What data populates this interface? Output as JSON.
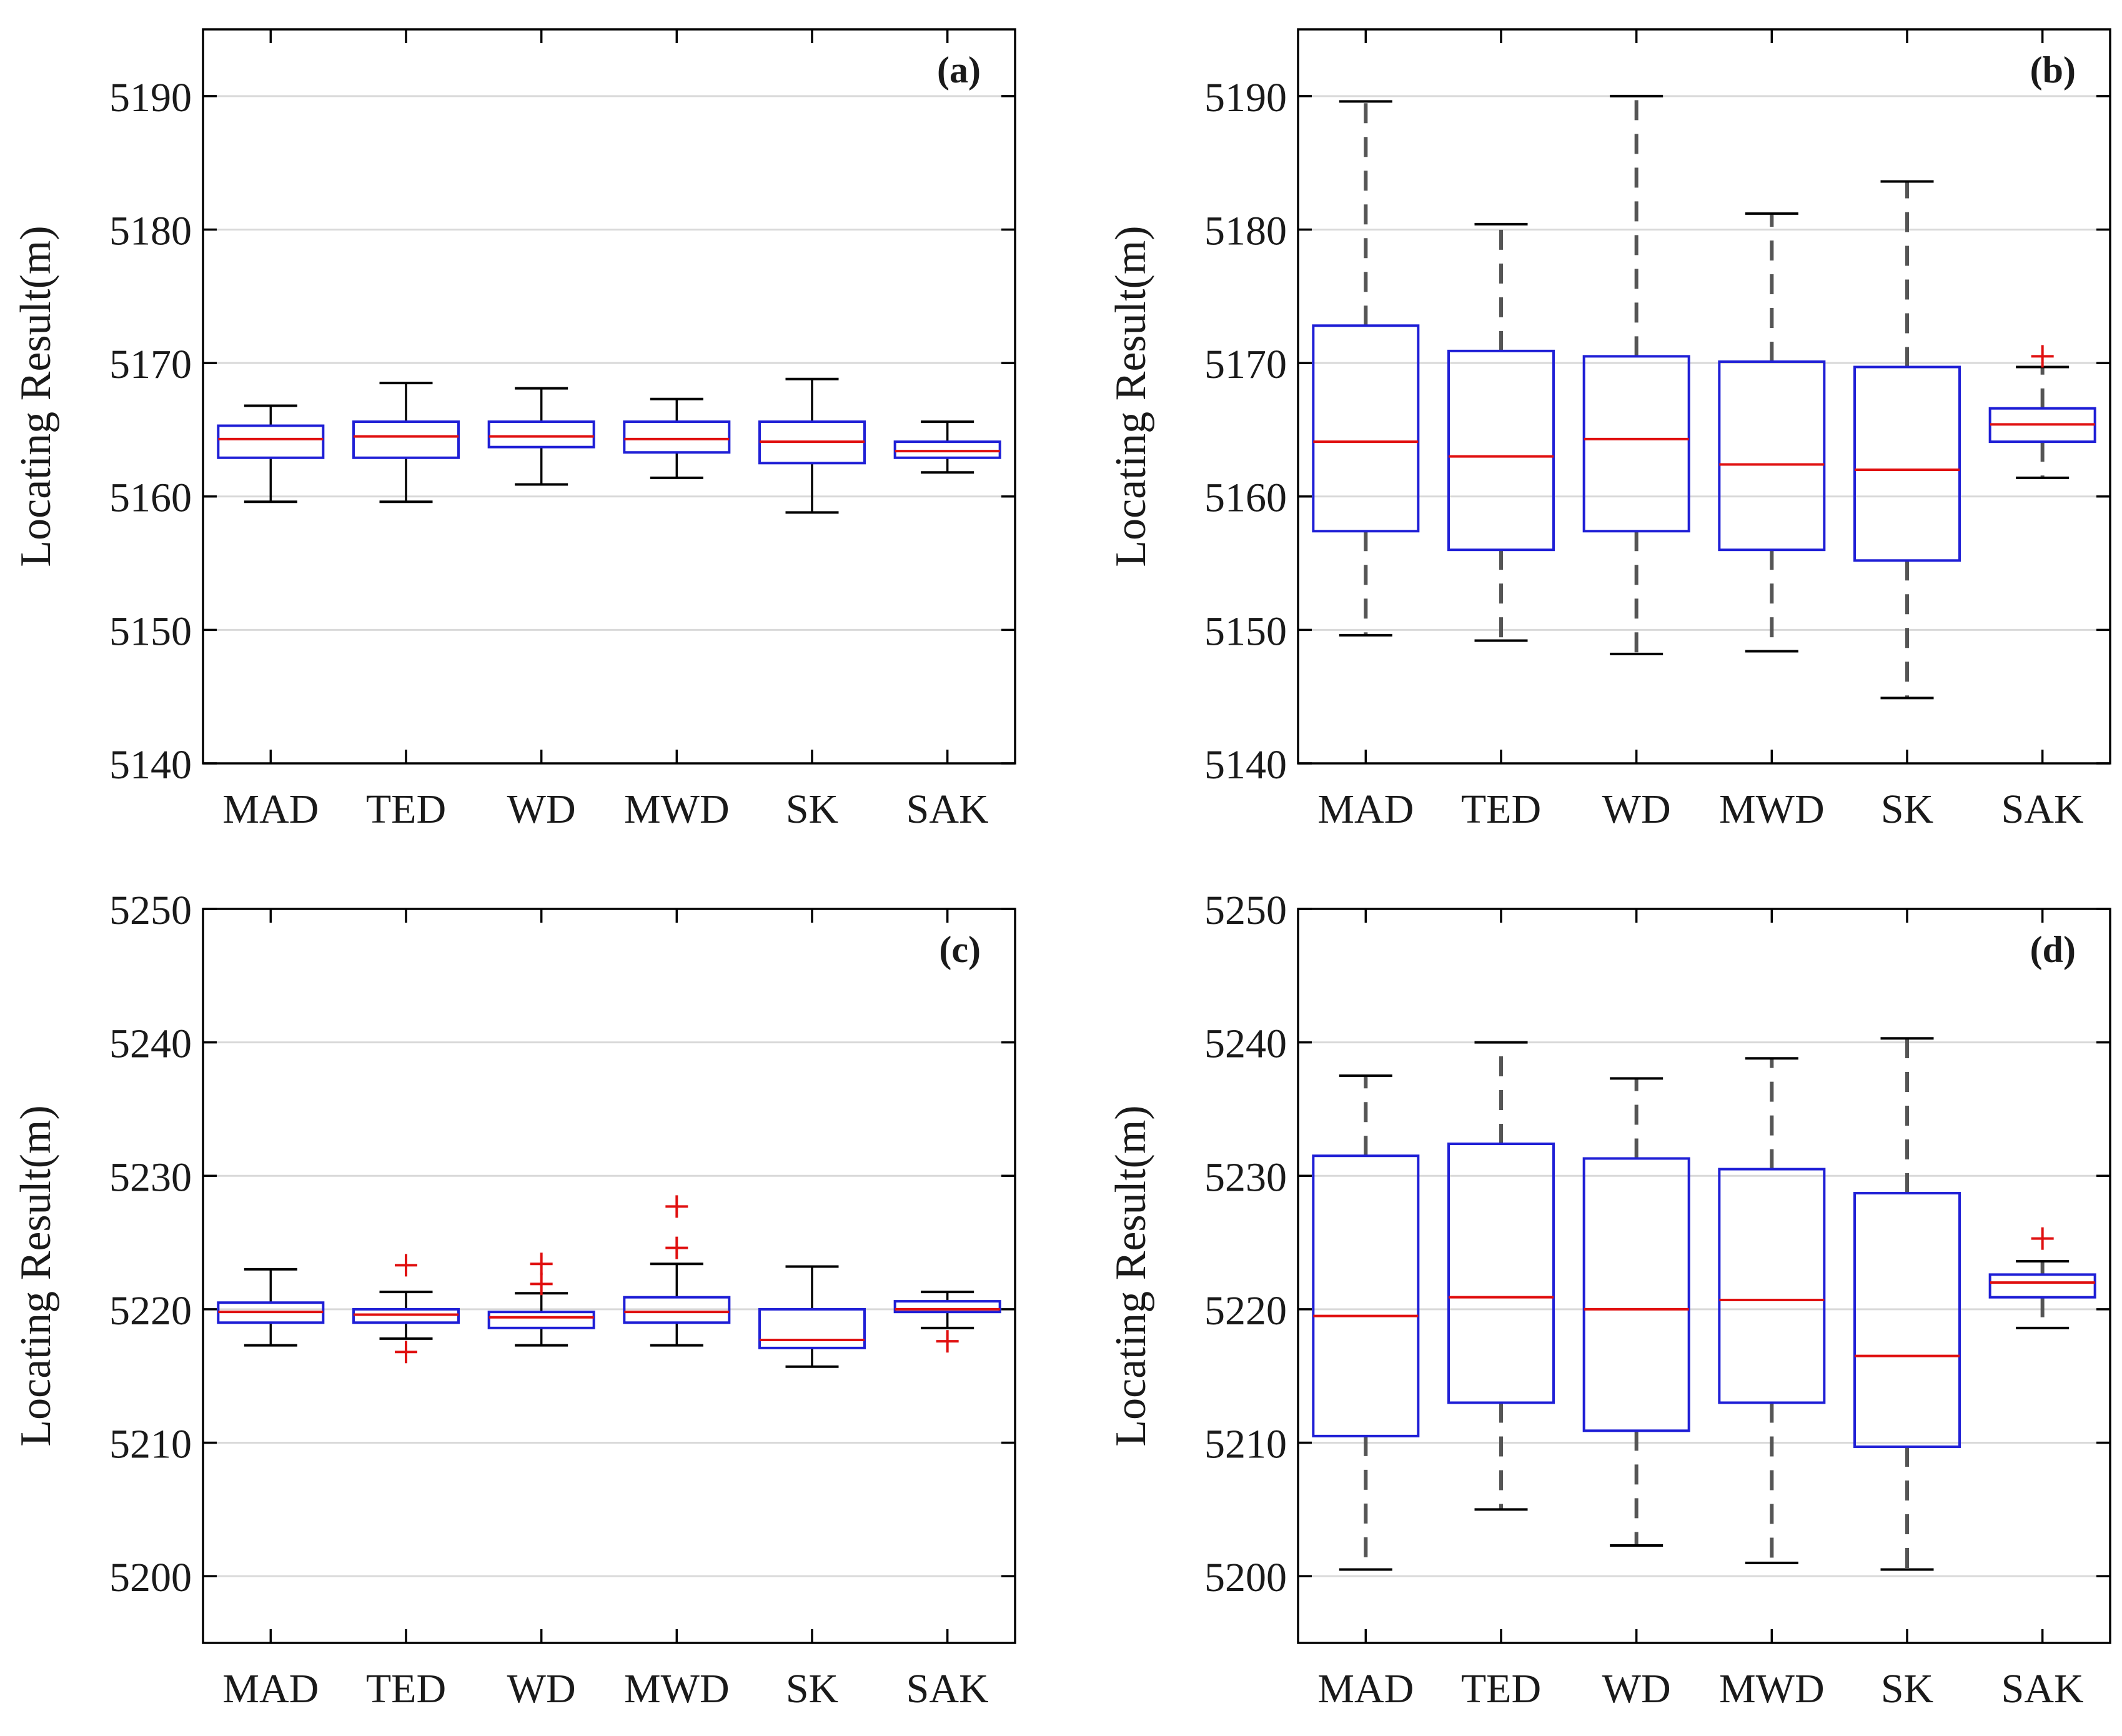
{
  "chart_data": [
    {
      "type": "box",
      "panel_label": "(a)",
      "ylabel": "Locating Result(m)",
      "ylim": [
        5140,
        5195
      ],
      "yticks": [
        5140,
        5150,
        5160,
        5170,
        5180,
        5190
      ],
      "grid": "horizontal",
      "categories": [
        "MAD",
        "TED",
        "WD",
        "MWD",
        "SK",
        "SAK"
      ],
      "boxes": [
        {
          "whisker_low": 5159.6,
          "q1": 5162.9,
          "median": 5164.3,
          "q3": 5165.3,
          "whisker_high": 5166.8,
          "outliers": []
        },
        {
          "whisker_low": 5159.6,
          "q1": 5162.9,
          "median": 5164.5,
          "q3": 5165.6,
          "whisker_high": 5168.5,
          "outliers": []
        },
        {
          "whisker_low": 5160.9,
          "q1": 5163.7,
          "median": 5164.5,
          "q3": 5165.6,
          "whisker_high": 5168.1,
          "outliers": []
        },
        {
          "whisker_low": 5161.4,
          "q1": 5163.3,
          "median": 5164.3,
          "q3": 5165.6,
          "whisker_high": 5167.3,
          "outliers": []
        },
        {
          "whisker_low": 5158.8,
          "q1": 5162.5,
          "median": 5164.1,
          "q3": 5165.6,
          "whisker_high": 5168.8,
          "outliers": []
        },
        {
          "whisker_low": 5161.8,
          "q1": 5162.9,
          "median": 5163.4,
          "q3": 5164.1,
          "whisker_high": 5165.6,
          "outliers": []
        }
      ]
    },
    {
      "type": "box",
      "panel_label": "(b)",
      "ylabel": "Locating Result(m)",
      "ylim": [
        5140,
        5195
      ],
      "yticks": [
        5140,
        5150,
        5160,
        5170,
        5180,
        5190
      ],
      "grid": "horizontal",
      "categories": [
        "MAD",
        "TED",
        "WD",
        "MWD",
        "SK",
        "SAK"
      ],
      "boxes": [
        {
          "whisker_low": 5149.6,
          "q1": 5157.4,
          "median": 5164.1,
          "q3": 5172.8,
          "whisker_high": 5189.6,
          "outliers": []
        },
        {
          "whisker_low": 5149.2,
          "q1": 5156.0,
          "median": 5163.0,
          "q3": 5170.9,
          "whisker_high": 5180.4,
          "outliers": []
        },
        {
          "whisker_low": 5148.2,
          "q1": 5157.4,
          "median": 5164.3,
          "q3": 5170.5,
          "whisker_high": 5190.0,
          "outliers": []
        },
        {
          "whisker_low": 5148.4,
          "q1": 5156.0,
          "median": 5162.4,
          "q3": 5170.1,
          "whisker_high": 5181.2,
          "outliers": []
        },
        {
          "whisker_low": 5144.9,
          "q1": 5155.2,
          "median": 5162.0,
          "q3": 5169.7,
          "whisker_high": 5183.6,
          "outliers": []
        },
        {
          "whisker_low": 5161.4,
          "q1": 5164.1,
          "median": 5165.4,
          "q3": 5166.6,
          "whisker_high": 5169.7,
          "outliers": [
            5170.5
          ]
        }
      ]
    },
    {
      "type": "box",
      "panel_label": "(c)",
      "ylabel": "Locating Result(m)",
      "ylim": [
        5195,
        5250
      ],
      "yticks": [
        5200,
        5210,
        5220,
        5230,
        5240,
        5250
      ],
      "grid": "horizontal",
      "categories": [
        "MAD",
        "TED",
        "WD",
        "MWD",
        "SK",
        "SAK"
      ],
      "boxes": [
        {
          "whisker_low": 5217.3,
          "q1": 5219.0,
          "median": 5219.8,
          "q3": 5220.5,
          "whisker_high": 5223.0,
          "outliers": []
        },
        {
          "whisker_low": 5217.8,
          "q1": 5219.0,
          "median": 5219.6,
          "q3": 5220.0,
          "whisker_high": 5221.3,
          "outliers": [
            5216.8,
            5223.3
          ]
        },
        {
          "whisker_low": 5217.3,
          "q1": 5218.6,
          "median": 5219.4,
          "q3": 5219.8,
          "whisker_high": 5221.2,
          "outliers": [
            5221.9,
            5223.4
          ]
        },
        {
          "whisker_low": 5217.3,
          "q1": 5219.0,
          "median": 5219.8,
          "q3": 5220.9,
          "whisker_high": 5223.4,
          "outliers": [
            5224.6,
            5227.7
          ]
        },
        {
          "whisker_low": 5215.7,
          "q1": 5217.1,
          "median": 5217.7,
          "q3": 5220.0,
          "whisker_high": 5223.2,
          "outliers": []
        },
        {
          "whisker_low": 5218.6,
          "q1": 5219.8,
          "median": 5220.0,
          "q3": 5220.6,
          "whisker_high": 5221.3,
          "outliers": [
            5217.6
          ]
        }
      ]
    },
    {
      "type": "box",
      "panel_label": "(d)",
      "ylabel": "Locating Result(m)",
      "ylim": [
        5195,
        5250
      ],
      "yticks": [
        5200,
        5210,
        5220,
        5230,
        5240,
        5250
      ],
      "grid": "horizontal",
      "categories": [
        "MAD",
        "TED",
        "WD",
        "MWD",
        "SK",
        "SAK"
      ],
      "boxes": [
        {
          "whisker_low": 5200.5,
          "q1": 5210.5,
          "median": 5219.5,
          "q3": 5231.5,
          "whisker_high": 5237.5,
          "outliers": []
        },
        {
          "whisker_low": 5205.0,
          "q1": 5213.0,
          "median": 5220.9,
          "q3": 5232.4,
          "whisker_high": 5240.0,
          "outliers": []
        },
        {
          "whisker_low": 5202.3,
          "q1": 5210.9,
          "median": 5220.0,
          "q3": 5231.3,
          "whisker_high": 5237.3,
          "outliers": []
        },
        {
          "whisker_low": 5201.0,
          "q1": 5213.0,
          "median": 5220.7,
          "q3": 5230.5,
          "whisker_high": 5238.8,
          "outliers": []
        },
        {
          "whisker_low": 5200.5,
          "q1": 5209.7,
          "median": 5216.5,
          "q3": 5228.7,
          "whisker_high": 5240.3,
          "outliers": []
        },
        {
          "whisker_low": 5218.6,
          "q1": 5220.9,
          "median": 5222.0,
          "q3": 5222.6,
          "whisker_high": 5223.6,
          "outliers": [
            5225.3
          ]
        }
      ]
    }
  ],
  "style": {
    "box_color": "#1f1fd6",
    "median_color": "#e01010",
    "whisker_color": "#000000",
    "dashed_whisker_color": "#555555",
    "outlier_color": "#e01010",
    "grid_color": "#d9d9d9",
    "axis_color": "#000000"
  }
}
